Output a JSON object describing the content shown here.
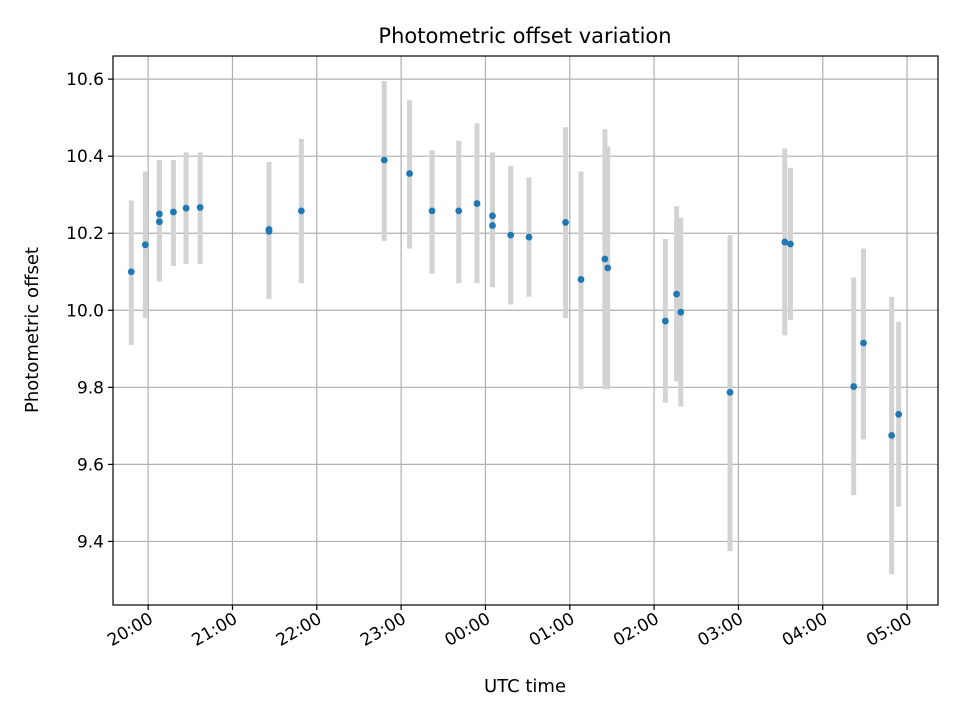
{
  "chart_data": {
    "type": "scatter",
    "title": "Photometric offset variation",
    "xlabel": "UTC time",
    "ylabel": "Photometric offset",
    "x_axis_type": "time",
    "xlim": [
      "19:35",
      "05:22"
    ],
    "ylim": [
      9.235,
      10.66
    ],
    "x_ticks": [
      "20:00",
      "21:00",
      "22:00",
      "23:00",
      "00:00",
      "01:00",
      "02:00",
      "03:00",
      "04:00",
      "05:00"
    ],
    "y_ticks": [
      9.4,
      9.6,
      9.8,
      10.0,
      10.2,
      10.4,
      10.6
    ],
    "y_tick_labels": [
      "9.4",
      "9.6",
      "9.8",
      "10.0",
      "10.2",
      "10.4",
      "10.6"
    ],
    "grid": true,
    "point_color": "#1f77b4",
    "errorbar_color": "#d3d3d3",
    "points": [
      {
        "x": "19:48",
        "y": 10.1,
        "ylow": 9.91,
        "yhigh": 10.285
      },
      {
        "x": "19:58",
        "y": 10.17,
        "ylow": 9.98,
        "yhigh": 10.36
      },
      {
        "x": "20:08",
        "y": 10.25,
        "ylow": 10.075,
        "yhigh": 10.39
      },
      {
        "x": "20:08",
        "y": 10.23,
        "ylow": 10.075,
        "yhigh": 10.39
      },
      {
        "x": "20:18",
        "y": 10.255,
        "ylow": 10.115,
        "yhigh": 10.39
      },
      {
        "x": "20:27",
        "y": 10.265,
        "ylow": 10.12,
        "yhigh": 10.41
      },
      {
        "x": "20:37",
        "y": 10.267,
        "ylow": 10.12,
        "yhigh": 10.41
      },
      {
        "x": "21:26",
        "y": 10.21,
        "ylow": 10.03,
        "yhigh": 10.385
      },
      {
        "x": "21:26",
        "y": 10.205,
        "ylow": 10.03,
        "yhigh": 10.385
      },
      {
        "x": "21:49",
        "y": 10.258,
        "ylow": 10.07,
        "yhigh": 10.445
      },
      {
        "x": "22:48",
        "y": 10.39,
        "ylow": 10.18,
        "yhigh": 10.595
      },
      {
        "x": "23:06",
        "y": 10.355,
        "ylow": 10.16,
        "yhigh": 10.545
      },
      {
        "x": "23:22",
        "y": 10.258,
        "ylow": 10.095,
        "yhigh": 10.415
      },
      {
        "x": "23:41",
        "y": 10.258,
        "ylow": 10.07,
        "yhigh": 10.44
      },
      {
        "x": "23:54",
        "y": 10.277,
        "ylow": 10.07,
        "yhigh": 10.485
      },
      {
        "x": "00:05",
        "y": 10.245,
        "ylow": 10.06,
        "yhigh": 10.41
      },
      {
        "x": "00:05",
        "y": 10.22,
        "ylow": 10.06,
        "yhigh": 10.41
      },
      {
        "x": "00:18",
        "y": 10.195,
        "ylow": 10.015,
        "yhigh": 10.375
      },
      {
        "x": "00:31",
        "y": 10.19,
        "ylow": 10.035,
        "yhigh": 10.345
      },
      {
        "x": "00:57",
        "y": 10.228,
        "ylow": 9.98,
        "yhigh": 10.475
      },
      {
        "x": "01:08",
        "y": 10.08,
        "ylow": 9.795,
        "yhigh": 10.36
      },
      {
        "x": "01:25",
        "y": 10.133,
        "ylow": 9.795,
        "yhigh": 10.47
      },
      {
        "x": "01:27",
        "y": 10.11,
        "ylow": 9.795,
        "yhigh": 10.425
      },
      {
        "x": "02:08",
        "y": 9.972,
        "ylow": 9.76,
        "yhigh": 10.185
      },
      {
        "x": "02:16",
        "y": 10.042,
        "ylow": 9.815,
        "yhigh": 10.27
      },
      {
        "x": "02:19",
        "y": 9.995,
        "ylow": 9.75,
        "yhigh": 10.24
      },
      {
        "x": "02:54",
        "y": 9.787,
        "ylow": 9.375,
        "yhigh": 10.195
      },
      {
        "x": "03:33",
        "y": 10.177,
        "ylow": 9.935,
        "yhigh": 10.42
      },
      {
        "x": "03:37",
        "y": 10.172,
        "ylow": 9.975,
        "yhigh": 10.37
      },
      {
        "x": "04:22",
        "y": 9.802,
        "ylow": 9.52,
        "yhigh": 10.085
      },
      {
        "x": "04:29",
        "y": 9.915,
        "ylow": 9.665,
        "yhigh": 10.16
      },
      {
        "x": "04:49",
        "y": 9.675,
        "ylow": 9.315,
        "yhigh": 10.035
      },
      {
        "x": "04:54",
        "y": 9.73,
        "ylow": 9.49,
        "yhigh": 9.97
      }
    ]
  }
}
